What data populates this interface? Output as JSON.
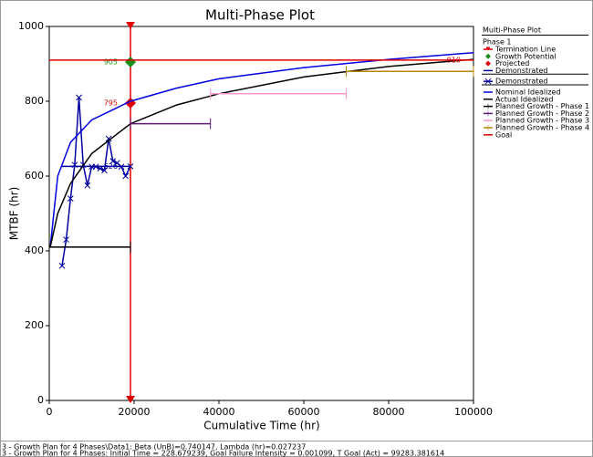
{
  "chart_data": {
    "type": "line",
    "title": "Multi-Phase Plot",
    "x_label": "Cumulative Time (hr)",
    "y_label": "MTBF (hr)",
    "xlim": [
      0,
      100000
    ],
    "ylim": [
      0,
      1000
    ],
    "xticks": [
      0,
      20000,
      40000,
      60000,
      80000,
      100000
    ],
    "yticks": [
      0,
      200,
      400,
      600,
      800,
      1000
    ],
    "legend_title": "Multi-Phase Plot",
    "legend_subtitle": "Phase 1",
    "series": [
      {
        "name": "Termination Line",
        "color": "#e00000",
        "x": [
          19140,
          19140
        ],
        "values": [
          0,
          1000
        ],
        "marker": "triangle"
      },
      {
        "name": "Growth Potential",
        "color": "#1a8f1a",
        "x": [
          19140
        ],
        "values": [
          905
        ],
        "marker": "diamond",
        "label": "last"
      },
      {
        "name": "Projected",
        "color": "#e00000",
        "x": [
          19140
        ],
        "values": [
          795
        ],
        "marker": "diamond",
        "label": "last"
      },
      {
        "name": "Demonstrated",
        "color": "#0000a0",
        "x": [
          3000,
          19140
        ],
        "values": [
          626,
          626
        ],
        "label": "last"
      },
      {
        "name": "Demonstrated",
        "color": "#0000a0",
        "x": [
          3000,
          4000,
          5000,
          6000,
          7000,
          8000,
          9000,
          10000,
          11000,
          12000,
          13000,
          14000,
          15000,
          16000,
          17000,
          18000,
          19140
        ],
        "values": [
          360,
          430,
          540,
          630,
          810,
          630,
          575,
          625,
          625,
          620,
          615,
          700,
          640,
          635,
          625,
          600,
          626
        ],
        "marker": "x"
      },
      {
        "name": "Nominal Idealized",
        "color": "#0000e0",
        "x": [
          229,
          2000,
          5000,
          10000,
          19140,
          30000,
          40000,
          60000,
          80000,
          100000
        ],
        "values": [
          410,
          600,
          690,
          750,
          800,
          835,
          860,
          890,
          912,
          930
        ]
      },
      {
        "name": "Actual Idealized",
        "color": "#000000",
        "x": [
          229,
          2000,
          5000,
          10000,
          19140,
          30000,
          40000,
          60000,
          80000,
          100000
        ],
        "values": [
          410,
          500,
          580,
          660,
          740,
          790,
          820,
          865,
          893,
          912
        ]
      },
      {
        "name": "Planned Growth - Phase 1",
        "color": "#000000",
        "x": [
          0,
          19140
        ],
        "values": [
          410,
          410
        ],
        "marker": "tick"
      },
      {
        "name": "Planned Growth - Phase 2",
        "color": "#5a1a7a",
        "x": [
          19140,
          38000
        ],
        "values": [
          740,
          740
        ],
        "marker": "tick"
      },
      {
        "name": "Planned Growth - Phase 3",
        "color": "#ff99cc",
        "x": [
          38000,
          70000
        ],
        "values": [
          820,
          820
        ],
        "marker": "tick"
      },
      {
        "name": "Planned Growth - Phase 4",
        "color": "#b8860b",
        "x": [
          70000,
          100000
        ],
        "values": [
          880,
          880
        ],
        "marker": "tick"
      },
      {
        "name": "Goal",
        "color": "#e00000",
        "x": [
          0,
          100000
        ],
        "values": [
          910,
          910
        ],
        "label": "last"
      }
    ]
  },
  "footer": [
    "3 - Growth Plan for 4 Phases\\Data1: Beta (UnB)=0.740147, Lambda (hr)=0.027237",
    "3 - Growth Plan for 4 Phases: Initial Time = 228.679239, Goal Failure Intensity = 0.001099, T Goal (Act) = 99283.381614"
  ]
}
